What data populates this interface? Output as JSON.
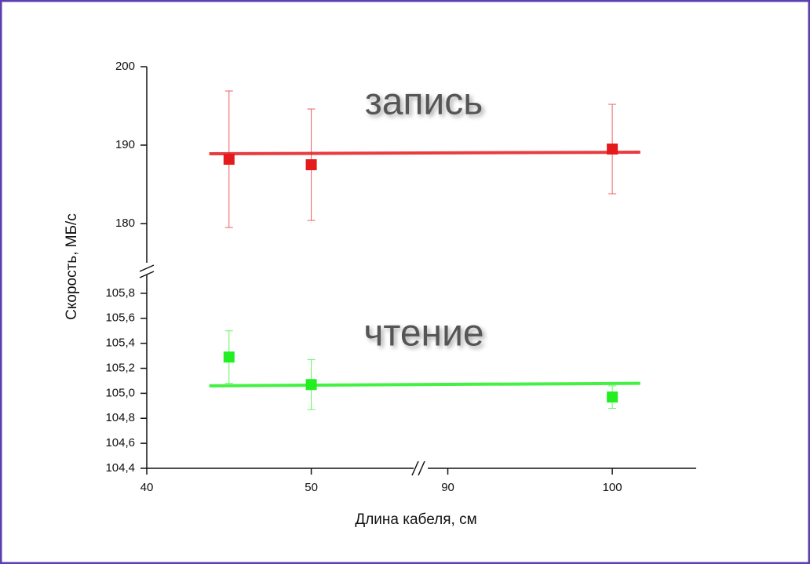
{
  "chart_data": {
    "type": "scatter",
    "xlabel": "Длина кабеля, см",
    "ylabel": "Скорость, МБ/с",
    "x": [
      45,
      50,
      100
    ],
    "xlim": [
      40,
      105.1
    ],
    "xbreak": [
      56.7,
      88.4
    ],
    "xticks": [
      40,
      50,
      90,
      100
    ],
    "panels": [
      {
        "ylim": [
          175,
          200
        ],
        "yticks": [
          180,
          190,
          200
        ],
        "series": [
          {
            "name": "запись",
            "color": "#e41a1c",
            "values": [
              188.2,
              187.5,
              189.5
            ],
            "errors": [
              8.7,
              7.1,
              5.7
            ],
            "fit_x": [
              43.8,
              101.7
            ],
            "fit_values": [
              188.9,
              189.1
            ]
          }
        ]
      },
      {
        "ylim": [
          104.4,
          105.95
        ],
        "yticks": [
          {
            "value": 104.4,
            "label": "104,4"
          },
          {
            "value": 104.6,
            "label": "104,6"
          },
          {
            "value": 104.8,
            "label": "104,8"
          },
          {
            "value": 105.0,
            "label": "105,0"
          },
          {
            "value": 105.2,
            "label": "105,2"
          },
          {
            "value": 105.4,
            "label": "105,4"
          },
          {
            "value": 105.6,
            "label": "105,6"
          },
          {
            "value": 105.8,
            "label": "105,8"
          }
        ],
        "series": [
          {
            "name": "чтение",
            "color": "#22ee22",
            "values": [
              105.29,
              105.07,
              104.97
            ],
            "errors": [
              0.21,
              0.2,
              0.09
            ],
            "fit_x": [
              43.8,
              101.7
            ],
            "fit_values": [
              105.06,
              105.08
            ]
          }
        ]
      }
    ]
  }
}
